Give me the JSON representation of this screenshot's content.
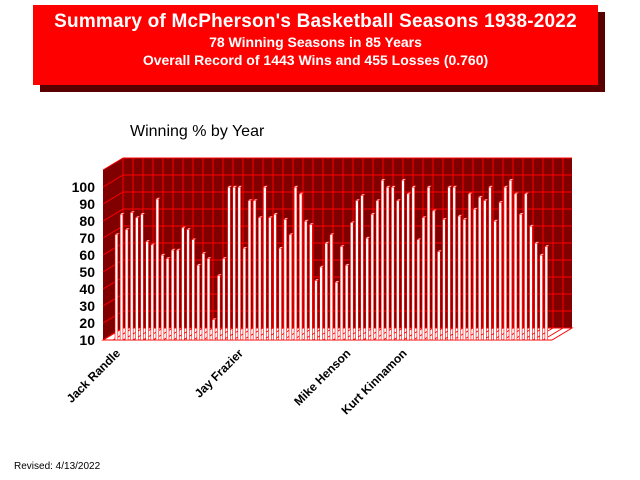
{
  "header": {
    "title": "Summary of McPherson's Basketball Seasons  1938-2022",
    "subtitle1": "78 Winning Seasons in 85 Years",
    "subtitle2": "Overall Record of 1443 Wins and 455 Losses (0.760)"
  },
  "revised": "Revised: 4/13/2022",
  "colors": {
    "banner": "#ff0000",
    "banner_shadow": "#5a0000",
    "plot_back": "#800000",
    "grid": "#ff0000",
    "bar": "#ffffff"
  },
  "chart_data": {
    "type": "bar",
    "title": "Winning % by Year",
    "ylim": [
      10,
      110
    ],
    "yticks": [
      "10",
      "20",
      "30",
      "40",
      "50",
      "60",
      "70",
      "80",
      "90",
      "100"
    ],
    "grid": true,
    "coach_labels": [
      {
        "name": "Jack Randle",
        "index": 0
      },
      {
        "name": "Jay Frazier",
        "index": 24
      },
      {
        "name": "Mike Henson",
        "index": 45
      },
      {
        "name": "Kurt Kinnamon",
        "index": 56
      }
    ],
    "values": [
      72,
      84,
      75,
      85,
      82,
      84,
      68,
      66,
      93,
      60,
      58,
      63,
      63,
      76,
      75,
      69,
      54,
      61,
      58,
      22,
      48,
      58,
      100,
      100,
      100,
      64,
      92,
      92,
      82,
      100,
      82,
      84,
      64,
      81,
      72,
      100,
      96,
      80,
      78,
      45,
      53,
      67,
      72,
      44,
      65,
      54,
      79,
      92,
      95,
      70,
      84,
      92,
      104,
      100,
      100,
      92,
      104,
      96,
      100,
      69,
      82,
      100,
      86,
      62,
      81,
      100,
      100,
      83,
      81,
      96,
      87,
      94,
      92,
      100,
      80,
      91,
      100,
      104,
      96,
      84,
      96,
      77,
      67,
      60,
      65
    ]
  }
}
